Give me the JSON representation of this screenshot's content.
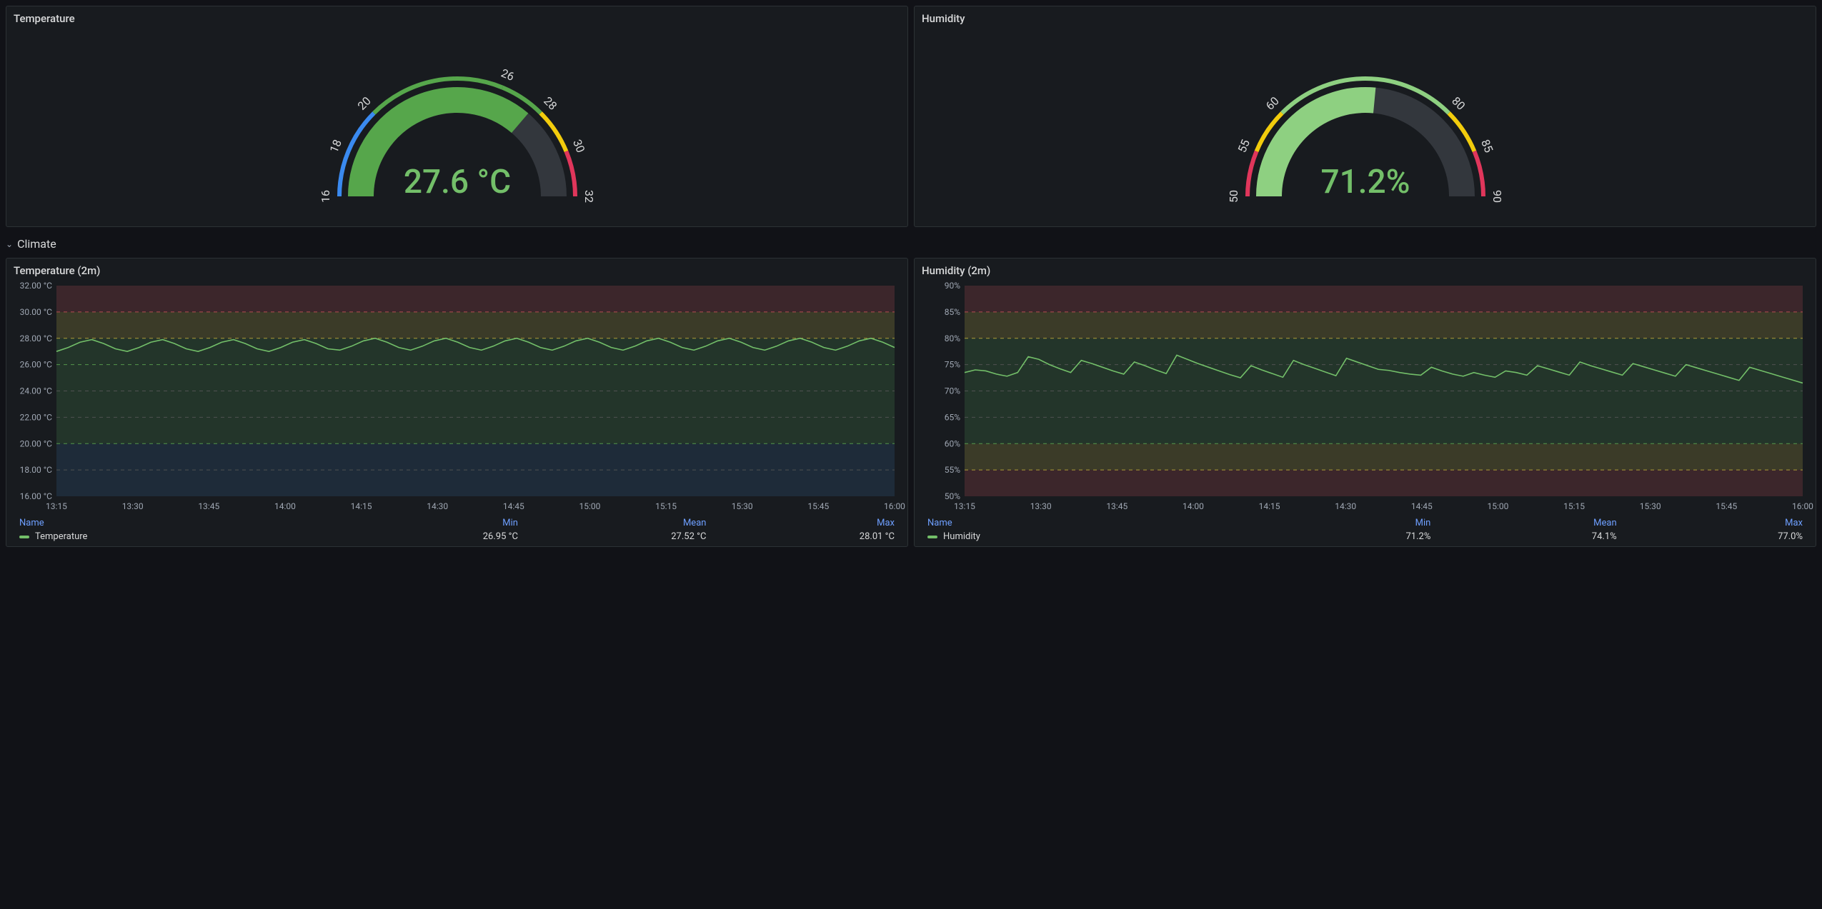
{
  "colors": {
    "panel_bg": "#181b1f",
    "panel_border": "#2c3235",
    "body_bg": "#111217",
    "text": "#d8d9da",
    "link": "#6e9fff",
    "green_value": "#73bf69",
    "series_green": "#73bf69",
    "band_red": "#5b2f34",
    "band_yellow": "#5a5630",
    "band_green": "#2e4b33",
    "band_blue": "#24384e",
    "grid_green": "#5aa24f",
    "grid_yellow": "#b9a73a",
    "grid_red": "#c15055",
    "grid_blue": "#4a7bbf",
    "gauge_track": "#33373d",
    "gauge_blue": "#3a8af0",
    "gauge_green": "#56a64b",
    "gauge_light_green": "#8ed081",
    "gauge_yellow": "#f2cc0c",
    "gauge_red": "#e0365b"
  },
  "row": {
    "title": "Climate"
  },
  "panels": {
    "temp_gauge": {
      "title": "Temperature",
      "type": "gauge",
      "value": 27.6,
      "display": "27.6 °C",
      "min": 16,
      "max": 32,
      "ticks": [
        16,
        18,
        20,
        26,
        28,
        30,
        32
      ],
      "ring_segments": [
        {
          "from": 16,
          "to": 20,
          "color": "#3a8af0"
        },
        {
          "from": 20,
          "to": 26,
          "color": "#56a64b"
        },
        {
          "from": 26,
          "to": 28,
          "color": "#56a64b"
        },
        {
          "from": 28,
          "to": 30,
          "color": "#f2cc0c"
        },
        {
          "from": 30,
          "to": 32,
          "color": "#e0365b"
        }
      ],
      "fill_color": "#56a64b"
    },
    "hum_gauge": {
      "title": "Humidity",
      "type": "gauge",
      "value": 71.2,
      "display": "71.2%",
      "min": 50,
      "max": 90,
      "ticks": [
        50,
        55,
        60,
        80,
        85,
        90
      ],
      "ring_segments": [
        {
          "from": 50,
          "to": 55,
          "color": "#e0365b"
        },
        {
          "from": 55,
          "to": 60,
          "color": "#f2cc0c"
        },
        {
          "from": 60,
          "to": 80,
          "color": "#8ed081"
        },
        {
          "from": 80,
          "to": 85,
          "color": "#f2cc0c"
        },
        {
          "from": 85,
          "to": 90,
          "color": "#e0365b"
        }
      ],
      "fill_color": "#8ed081"
    },
    "temp_ts": {
      "title": "Temperature (2m)",
      "type": "timeseries",
      "y_min": 16,
      "y_max": 32,
      "y_step": 2,
      "y_suffix": " °C",
      "y_decimals": 2,
      "x_labels": [
        "13:15",
        "13:30",
        "13:45",
        "14:00",
        "14:15",
        "14:30",
        "14:45",
        "15:00",
        "15:15",
        "15:30",
        "15:45",
        "16:00"
      ],
      "bands": [
        {
          "from": 16,
          "to": 20,
          "color": "#24384e",
          "grid": "#4a7bbf"
        },
        {
          "from": 20,
          "to": 26,
          "color": "#2e4b33",
          "grid": "#5aa24f"
        },
        {
          "from": 26,
          "to": 28,
          "color": "#2e4b33",
          "grid": "#5aa24f"
        },
        {
          "from": 28,
          "to": 30,
          "color": "#5a5630",
          "grid": "#b9a73a"
        },
        {
          "from": 30,
          "to": 32,
          "color": "#5b2f34",
          "grid": "#c15055"
        }
      ],
      "series": {
        "name": "Temperature",
        "color": "#73bf69",
        "min": "26.95 °C",
        "mean": "27.52 °C",
        "max": "28.01 °C",
        "points": [
          27.0,
          27.3,
          27.7,
          27.9,
          27.6,
          27.2,
          27.0,
          27.3,
          27.7,
          27.9,
          27.6,
          27.2,
          27.0,
          27.3,
          27.7,
          27.9,
          27.6,
          27.2,
          27.0,
          27.3,
          27.7,
          27.9,
          27.6,
          27.2,
          27.1,
          27.4,
          27.8,
          28.0,
          27.7,
          27.3,
          27.1,
          27.4,
          27.8,
          28.0,
          27.7,
          27.3,
          27.1,
          27.4,
          27.8,
          28.0,
          27.7,
          27.3,
          27.1,
          27.4,
          27.8,
          28.0,
          27.7,
          27.3,
          27.1,
          27.4,
          27.8,
          28.0,
          27.7,
          27.3,
          27.1,
          27.4,
          27.8,
          28.0,
          27.7,
          27.3,
          27.1,
          27.4,
          27.8,
          28.0,
          27.7,
          27.3,
          27.1,
          27.4,
          27.8,
          28.0,
          27.7,
          27.3
        ]
      },
      "legend_headers": [
        "Name",
        "Min",
        "Mean",
        "Max"
      ]
    },
    "hum_ts": {
      "title": "Humidity (2m)",
      "type": "timeseries",
      "y_min": 50,
      "y_max": 90,
      "y_step": 5,
      "y_suffix": "%",
      "y_decimals": 0,
      "x_labels": [
        "13:15",
        "13:30",
        "13:45",
        "14:00",
        "14:15",
        "14:30",
        "14:45",
        "15:00",
        "15:15",
        "15:30",
        "15:45",
        "16:00"
      ],
      "bands": [
        {
          "from": 50,
          "to": 55,
          "color": "#5b2f34",
          "grid": "#c15055"
        },
        {
          "from": 55,
          "to": 60,
          "color": "#5a5630",
          "grid": "#b9a73a"
        },
        {
          "from": 60,
          "to": 80,
          "color": "#2e4b33",
          "grid": "#5aa24f"
        },
        {
          "from": 80,
          "to": 85,
          "color": "#5a5630",
          "grid": "#b9a73a"
        },
        {
          "from": 85,
          "to": 90,
          "color": "#5b2f34",
          "grid": "#c15055"
        }
      ],
      "series": {
        "name": "Humidity",
        "color": "#73bf69",
        "min": "71.2%",
        "mean": "74.1%",
        "max": "77.0%",
        "points": [
          73.5,
          74.0,
          73.8,
          73.2,
          72.8,
          73.5,
          76.5,
          76.0,
          75.0,
          74.2,
          73.5,
          75.8,
          75.2,
          74.5,
          73.8,
          73.2,
          75.5,
          74.8,
          74.0,
          73.3,
          76.8,
          76.0,
          75.2,
          74.5,
          73.8,
          73.1,
          72.5,
          74.8,
          74.0,
          73.3,
          72.6,
          75.8,
          75.0,
          74.3,
          73.6,
          72.9,
          76.2,
          75.5,
          74.8,
          74.1,
          73.9,
          73.5,
          73.2,
          73.0,
          74.5,
          73.8,
          73.2,
          72.8,
          73.5,
          73.0,
          72.6,
          73.8,
          73.5,
          73.0,
          74.8,
          74.2,
          73.6,
          73.0,
          75.5,
          74.8,
          74.2,
          73.6,
          73.0,
          75.2,
          74.6,
          74.0,
          73.4,
          72.8,
          75.0,
          74.4,
          73.8,
          73.2,
          72.6,
          72.0,
          74.5,
          73.9,
          73.3,
          72.7,
          72.1,
          71.5
        ]
      },
      "legend_headers": [
        "Name",
        "Min",
        "Mean",
        "Max"
      ]
    }
  }
}
